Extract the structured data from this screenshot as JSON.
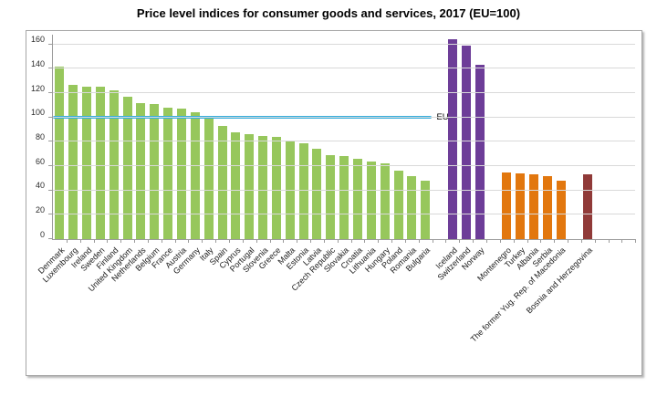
{
  "chart_data": {
    "type": "bar",
    "title": "Price level indices for consumer goods and services, 2017 (EU=100)",
    "y_axis": {
      "min": 0,
      "max": 160,
      "tick_interval": 20,
      "ticks": [
        0,
        20,
        40,
        60,
        80,
        100,
        120,
        140,
        160
      ]
    },
    "reference_line": {
      "value": 100,
      "label": "EU",
      "color": "#33aede"
    },
    "layout": {
      "grid": true,
      "legend": false,
      "gap_slots_between_groups": 1,
      "trailing_empty_slots": 3,
      "bars_under_reference_line": 28
    },
    "bar_groups": [
      {
        "color": "#97c75c",
        "bars": [
          {
            "label": "Denmark",
            "value": 142
          },
          {
            "label": "Luxembourg",
            "value": 127
          },
          {
            "label": "Ireland",
            "value": 125
          },
          {
            "label": "Sweden",
            "value": 125
          },
          {
            "label": "Finland",
            "value": 122
          },
          {
            "label": "United Kingdom",
            "value": 117
          },
          {
            "label": "Netherlands",
            "value": 112
          },
          {
            "label": "Belgium",
            "value": 111
          },
          {
            "label": "France",
            "value": 108
          },
          {
            "label": "Austria",
            "value": 107
          },
          {
            "label": "Germany",
            "value": 104
          },
          {
            "label": "Italy",
            "value": 101
          },
          {
            "label": "Spain",
            "value": 93
          },
          {
            "label": "Cyprus",
            "value": 88
          },
          {
            "label": "Portugal",
            "value": 86
          },
          {
            "label": "Slovenia",
            "value": 85
          },
          {
            "label": "Greece",
            "value": 84
          },
          {
            "label": "Malta",
            "value": 81
          },
          {
            "label": "Estonia",
            "value": 79
          },
          {
            "label": "Latvia",
            "value": 74
          },
          {
            "label": "Czech Republic",
            "value": 69
          },
          {
            "label": "Slovakia",
            "value": 68
          },
          {
            "label": "Croatia",
            "value": 66
          },
          {
            "label": "Lithuania",
            "value": 64
          },
          {
            "label": "Hungary",
            "value": 62
          },
          {
            "label": "Poland",
            "value": 56
          },
          {
            "label": "Romania",
            "value": 52
          },
          {
            "label": "Bulgaria",
            "value": 48
          }
        ]
      },
      {
        "color": "#6d3d98",
        "bars": [
          {
            "label": "Iceland",
            "value": 164
          },
          {
            "label": "Switzerland",
            "value": 159
          },
          {
            "label": "Norway",
            "value": 143
          }
        ]
      },
      {
        "color": "#e2770e",
        "bars": [
          {
            "label": "Montenegro",
            "value": 55
          },
          {
            "label": "Turkey",
            "value": 54
          },
          {
            "label": "Albania",
            "value": 53
          },
          {
            "label": "Serbia",
            "value": 52
          },
          {
            "label": "The former Yug. Rep. of Macedonia",
            "value": 48
          }
        ]
      },
      {
        "color": "#903a38",
        "bars": [
          {
            "label": "Bosnia and Herzegovina",
            "value": 53
          }
        ]
      }
    ]
  }
}
